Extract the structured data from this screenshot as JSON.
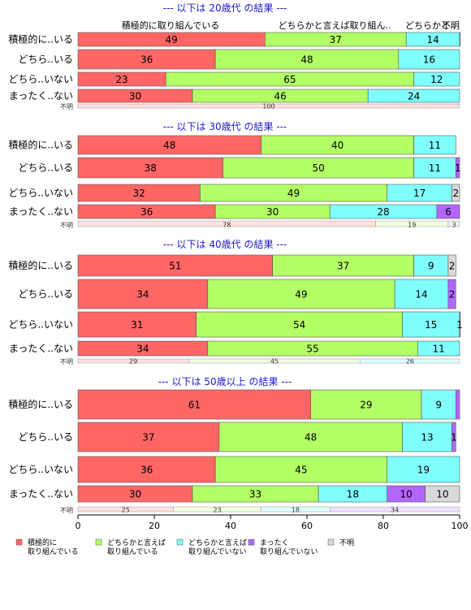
{
  "chart_data": {
    "type": "bar",
    "orientation": "horizontal-stacked-percent",
    "xlim": [
      0,
      100
    ],
    "x_ticks": [
      "0",
      "20",
      "40",
      "60",
      "80",
      "100"
    ],
    "categories_legend": [
      {
        "name": "積極的に 取り組んでいる",
        "color": "#ff6666"
      },
      {
        "name": "どちらかと言えば 取り組んでいる",
        "color": "#b3ff66"
      },
      {
        "name": "どちらかと言えば 取り組んでいない",
        "color": "#80ffff"
      },
      {
        "name": "まったく 取り組んでいない",
        "color": "#b366ff"
      },
      {
        "name": "不明",
        "color": "#d9d9d9"
      }
    ],
    "header_labels": [
      "積極的に取り組んでいる",
      "どちらかと言えば取り組ん..",
      "どちらかと..",
      "不明"
    ],
    "panels": [
      {
        "title": "--- 以下は 20歳代 の結果 ---",
        "rows": [
          {
            "label": "積極的に..いる",
            "values": [
              49,
              37,
              14,
              0,
              0.5
            ],
            "labels": [
              "49",
              "37",
              "14",
              "",
              ""
            ]
          },
          {
            "label": "どちら..いる",
            "values": [
              36,
              48,
              16,
              0,
              0
            ],
            "labels": [
              "36",
              "48",
              "16",
              "",
              ""
            ]
          },
          {
            "label": "どちら..いない",
            "values": [
              23,
              65,
              12,
              0,
              0
            ],
            "labels": [
              "23",
              "65",
              "12",
              "",
              ""
            ]
          },
          {
            "label": "まったく..ない",
            "values": [
              30,
              46,
              24,
              0,
              0
            ],
            "labels": [
              "30",
              "46",
              "24",
              "",
              ""
            ]
          }
        ],
        "unknown": {
          "label": "不明",
          "values": [
            100
          ],
          "colors": [
            "#ffe0e0"
          ],
          "labels": [
            "100"
          ]
        }
      },
      {
        "title": "--- 以下は 30歳代 の結果 ---",
        "rows": [
          {
            "label": "積極的に..いる",
            "values": [
              48,
              40,
              11,
              0,
              0
            ],
            "labels": [
              "48",
              "40",
              "11",
              "",
              ""
            ]
          },
          {
            "label": "どちら..いる",
            "values": [
              38,
              50,
              11,
              1,
              0
            ],
            "labels": [
              "38",
              "50",
              "11",
              "1",
              ""
            ]
          },
          {
            "label": "どちら..いない",
            "values": [
              32,
              49,
              17,
              0,
              2
            ],
            "labels": [
              "32",
              "49",
              "17",
              "",
              "2"
            ]
          },
          {
            "label": "まったく..ない",
            "values": [
              36,
              30,
              28,
              6,
              0
            ],
            "labels": [
              "36",
              "30",
              "28",
              "6",
              ""
            ]
          }
        ],
        "unknown": {
          "label": "不明",
          "values": [
            78,
            19,
            3
          ],
          "colors": [
            "#ffe0e0",
            "#f2ffe0",
            "#f0f0f0"
          ],
          "labels": [
            "78",
            "19",
            "3"
          ]
        }
      },
      {
        "title": "--- 以下は 40歳代 の結果 ---",
        "rows": [
          {
            "label": "積極的に..いる",
            "values": [
              51,
              37,
              9,
              0,
              2
            ],
            "labels": [
              "51",
              "37",
              "9",
              "",
              "2"
            ]
          },
          {
            "label": "どちら..いる",
            "values": [
              34,
              49,
              14,
              2,
              0
            ],
            "labels": [
              "34",
              "49",
              "14",
              "2",
              ""
            ]
          },
          {
            "label": "どちら..いない",
            "values": [
              31,
              54,
              15,
              1,
              0
            ],
            "labels": [
              "31",
              "54",
              "15",
              "1",
              ""
            ]
          },
          {
            "label": "まったく..ない",
            "values": [
              34,
              55,
              11,
              0,
              0
            ],
            "labels": [
              "34",
              "55",
              "11",
              "",
              ""
            ]
          }
        ],
        "unknown": {
          "label": "不明",
          "values": [
            29,
            45,
            26
          ],
          "colors": [
            "#ffe0e0",
            "#f2ffe0",
            "#e0ffff"
          ],
          "labels": [
            "29",
            "45",
            "26"
          ]
        }
      },
      {
        "title": "--- 以下は 50歳以上 の結果 ---",
        "rows": [
          {
            "label": "積極的に..いる",
            "values": [
              61,
              29,
              9,
              1,
              0
            ],
            "labels": [
              "61",
              "29",
              "9",
              "",
              ""
            ]
          },
          {
            "label": "どちら..いる",
            "values": [
              37,
              48,
              13,
              1,
              0
            ],
            "labels": [
              "37",
              "48",
              "13",
              "1",
              ""
            ]
          },
          {
            "label": "どちら..いない",
            "values": [
              36,
              45,
              19,
              0,
              0
            ],
            "labels": [
              "36",
              "45",
              "19",
              "",
              ""
            ]
          },
          {
            "label": "まったく..ない",
            "values": [
              30,
              33,
              18,
              10,
              10
            ],
            "labels": [
              "30",
              "33",
              "18",
              "10",
              "10"
            ]
          }
        ],
        "unknown": {
          "label": "不明",
          "values": [
            25,
            23,
            18,
            34
          ],
          "colors": [
            "#ffe0e0",
            "#f2ffe0",
            "#e0ffff",
            "#f0e0ff"
          ],
          "labels": [
            "25",
            "23",
            "18",
            "34"
          ]
        }
      }
    ],
    "grid": false,
    "legend_position": "bottom"
  }
}
